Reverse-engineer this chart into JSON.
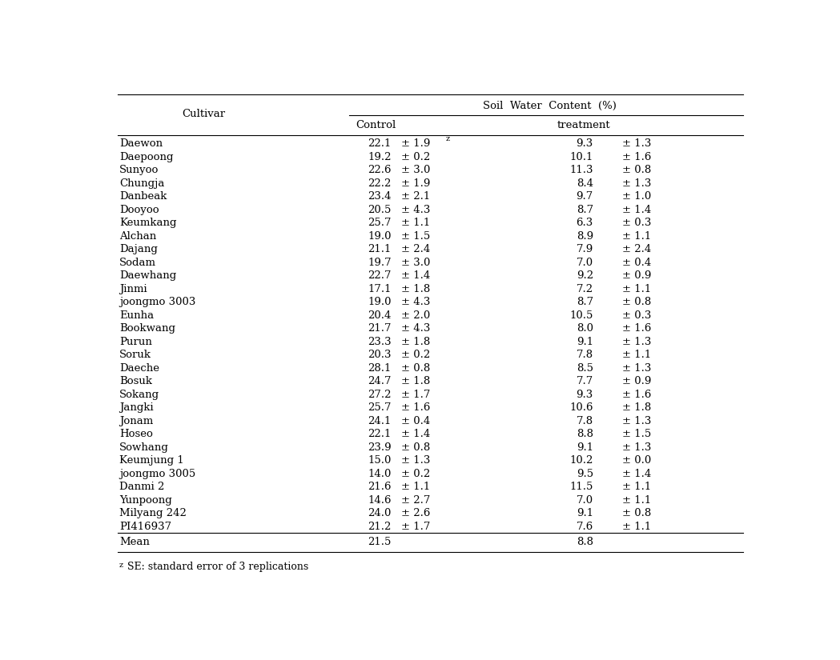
{
  "title": "Soil  Water  Content  (%)",
  "col_header1": "Control",
  "col_header2": "treatment",
  "col_cultivar": "Cultivar",
  "rows": [
    {
      "cultivar": "Daewon",
      "ctrl": "22.1",
      "ctrl_se": "± 1.9",
      "ctrl_se_sup": "z",
      "trt": "9.3",
      "trt_se": "± 1.3"
    },
    {
      "cultivar": "Daepoong",
      "ctrl": "19.2",
      "ctrl_se": "± 0.2",
      "ctrl_se_sup": "",
      "trt": "10.1",
      "trt_se": "± 1.6"
    },
    {
      "cultivar": "Sunyoo",
      "ctrl": "22.6",
      "ctrl_se": "± 3.0",
      "ctrl_se_sup": "",
      "trt": "11.3",
      "trt_se": "± 0.8"
    },
    {
      "cultivar": "Chungja",
      "ctrl": "22.2",
      "ctrl_se": "± 1.9",
      "ctrl_se_sup": "",
      "trt": "8.4",
      "trt_se": "± 1.3"
    },
    {
      "cultivar": "Danbeak",
      "ctrl": "23.4",
      "ctrl_se": "± 2.1",
      "ctrl_se_sup": "",
      "trt": "9.7",
      "trt_se": "± 1.0"
    },
    {
      "cultivar": "Dooyoo",
      "ctrl": "20.5",
      "ctrl_se": "± 4.3",
      "ctrl_se_sup": "",
      "trt": "8.7",
      "trt_se": "± 1.4"
    },
    {
      "cultivar": "Keumkang",
      "ctrl": "25.7",
      "ctrl_se": "± 1.1",
      "ctrl_se_sup": "",
      "trt": "6.3",
      "trt_se": "± 0.3"
    },
    {
      "cultivar": "Alchan",
      "ctrl": "19.0",
      "ctrl_se": "± 1.5",
      "ctrl_se_sup": "",
      "trt": "8.9",
      "trt_se": "± 1.1"
    },
    {
      "cultivar": "Dajang",
      "ctrl": "21.1",
      "ctrl_se": "± 2.4",
      "ctrl_se_sup": "",
      "trt": "7.9",
      "trt_se": "± 2.4"
    },
    {
      "cultivar": "Sodam",
      "ctrl": "19.7",
      "ctrl_se": "± 3.0",
      "ctrl_se_sup": "",
      "trt": "7.0",
      "trt_se": "± 0.4"
    },
    {
      "cultivar": "Daewhang",
      "ctrl": "22.7",
      "ctrl_se": "± 1.4",
      "ctrl_se_sup": "",
      "trt": "9.2",
      "trt_se": "± 0.9"
    },
    {
      "cultivar": "Jinmi",
      "ctrl": "17.1",
      "ctrl_se": "± 1.8",
      "ctrl_se_sup": "",
      "trt": "7.2",
      "trt_se": "± 1.1"
    },
    {
      "cultivar": "joongmo 3003",
      "ctrl": "19.0",
      "ctrl_se": "± 4.3",
      "ctrl_se_sup": "",
      "trt": "8.7",
      "trt_se": "± 0.8"
    },
    {
      "cultivar": "Eunha",
      "ctrl": "20.4",
      "ctrl_se": "± 2.0",
      "ctrl_se_sup": "",
      "trt": "10.5",
      "trt_se": "± 0.3"
    },
    {
      "cultivar": "Bookwang",
      "ctrl": "21.7",
      "ctrl_se": "± 4.3",
      "ctrl_se_sup": "",
      "trt": "8.0",
      "trt_se": "± 1.6"
    },
    {
      "cultivar": "Purun",
      "ctrl": "23.3",
      "ctrl_se": "± 1.8",
      "ctrl_se_sup": "",
      "trt": "9.1",
      "trt_se": "± 1.3"
    },
    {
      "cultivar": "Soruk",
      "ctrl": "20.3",
      "ctrl_se": "± 0.2",
      "ctrl_se_sup": "",
      "trt": "7.8",
      "trt_se": "± 1.1"
    },
    {
      "cultivar": "Daeche",
      "ctrl": "28.1",
      "ctrl_se": "± 0.8",
      "ctrl_se_sup": "",
      "trt": "8.5",
      "trt_se": "± 1.3"
    },
    {
      "cultivar": "Bosuk",
      "ctrl": "24.7",
      "ctrl_se": "± 1.8",
      "ctrl_se_sup": "",
      "trt": "7.7",
      "trt_se": "± 0.9"
    },
    {
      "cultivar": "Sokang",
      "ctrl": "27.2",
      "ctrl_se": "± 1.7",
      "ctrl_se_sup": "",
      "trt": "9.3",
      "trt_se": "± 1.6"
    },
    {
      "cultivar": "Jangki",
      "ctrl": "25.7",
      "ctrl_se": "± 1.6",
      "ctrl_se_sup": "",
      "trt": "10.6",
      "trt_se": "± 1.8"
    },
    {
      "cultivar": "Jonam",
      "ctrl": "24.1",
      "ctrl_se": "± 0.4",
      "ctrl_se_sup": "",
      "trt": "7.8",
      "trt_se": "± 1.3"
    },
    {
      "cultivar": "Hoseo",
      "ctrl": "22.1",
      "ctrl_se": "± 1.4",
      "ctrl_se_sup": "",
      "trt": "8.8",
      "trt_se": "± 1.5"
    },
    {
      "cultivar": "Sowhang",
      "ctrl": "23.9",
      "ctrl_se": "± 0.8",
      "ctrl_se_sup": "",
      "trt": "9.1",
      "trt_se": "± 1.3"
    },
    {
      "cultivar": "Keumjung 1",
      "ctrl": "15.0",
      "ctrl_se": "± 1.3",
      "ctrl_se_sup": "",
      "trt": "10.2",
      "trt_se": "± 0.0"
    },
    {
      "cultivar": "joongmo 3005",
      "ctrl": "14.0",
      "ctrl_se": "± 0.2",
      "ctrl_se_sup": "",
      "trt": "9.5",
      "trt_se": "± 1.4"
    },
    {
      "cultivar": "Danmi 2",
      "ctrl": "21.6",
      "ctrl_se": "± 1.1",
      "ctrl_se_sup": "",
      "trt": "11.5",
      "trt_se": "± 1.1"
    },
    {
      "cultivar": "Yunpoong",
      "ctrl": "14.6",
      "ctrl_se": "± 2.7",
      "ctrl_se_sup": "",
      "trt": "7.0",
      "trt_se": "± 1.1"
    },
    {
      "cultivar": "Milyang 242",
      "ctrl": "24.0",
      "ctrl_se": "± 2.6",
      "ctrl_se_sup": "",
      "trt": "9.1",
      "trt_se": "± 0.8"
    },
    {
      "cultivar": "PI416937",
      "ctrl": "21.2",
      "ctrl_se": "± 1.7",
      "ctrl_se_sup": "",
      "trt": "7.6",
      "trt_se": "± 1.1"
    }
  ],
  "mean_ctrl": "21.5",
  "mean_trt": "8.8",
  "footnote_super": "z",
  "footnote_text": "SE: standard error of 3 replications"
}
